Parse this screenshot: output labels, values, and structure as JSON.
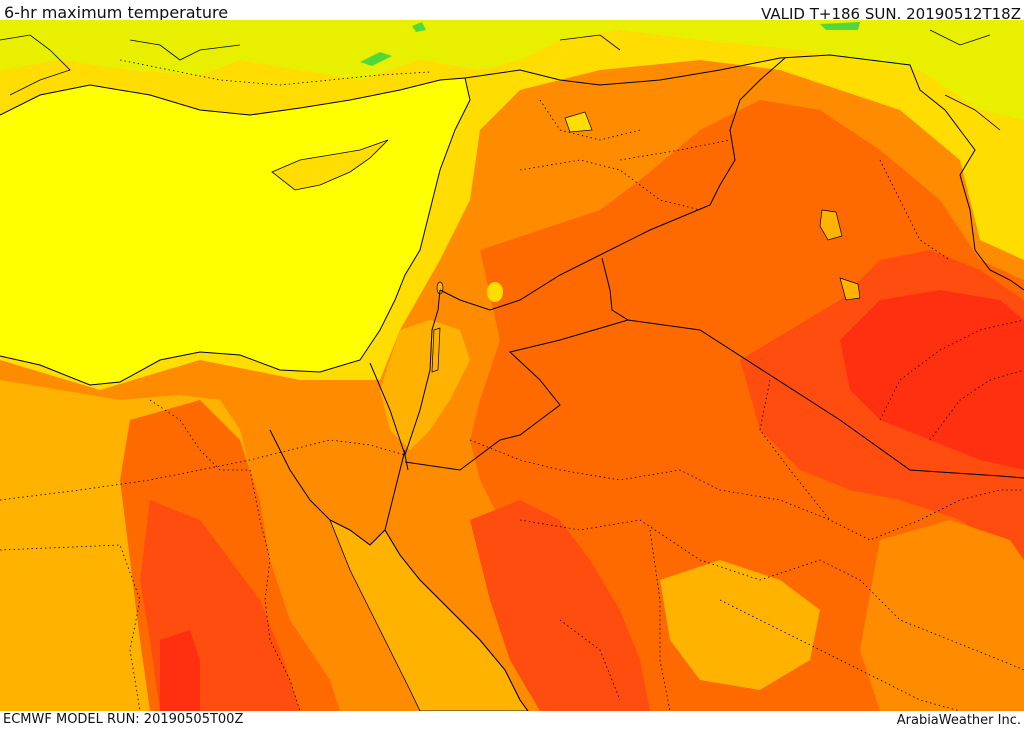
{
  "header": {
    "title": "6-hr maximum temperature",
    "valid": "VALID T+186 SUN. 20190512T18Z"
  },
  "footer": {
    "model_run": "ECMWF MODEL RUN: 20190505T00Z",
    "credit": "ArabiaWeather Inc."
  },
  "map": {
    "region": "Eastern Mediterranean and Middle East",
    "temperature_colors": {
      "coolest": "#4fd93a",
      "light_yellow": "#e8f000",
      "yellow": "#ffff00",
      "gold": "#ffdd00",
      "amber": "#ffb300",
      "orange": "#ff8c00",
      "dark_orange": "#ff6a00",
      "red_orange": "#ff4d10",
      "red": "#ff3010"
    },
    "lines": {
      "coastline": "#000000",
      "country_border": "#000000",
      "province_border": "dotted #000000"
    }
  }
}
